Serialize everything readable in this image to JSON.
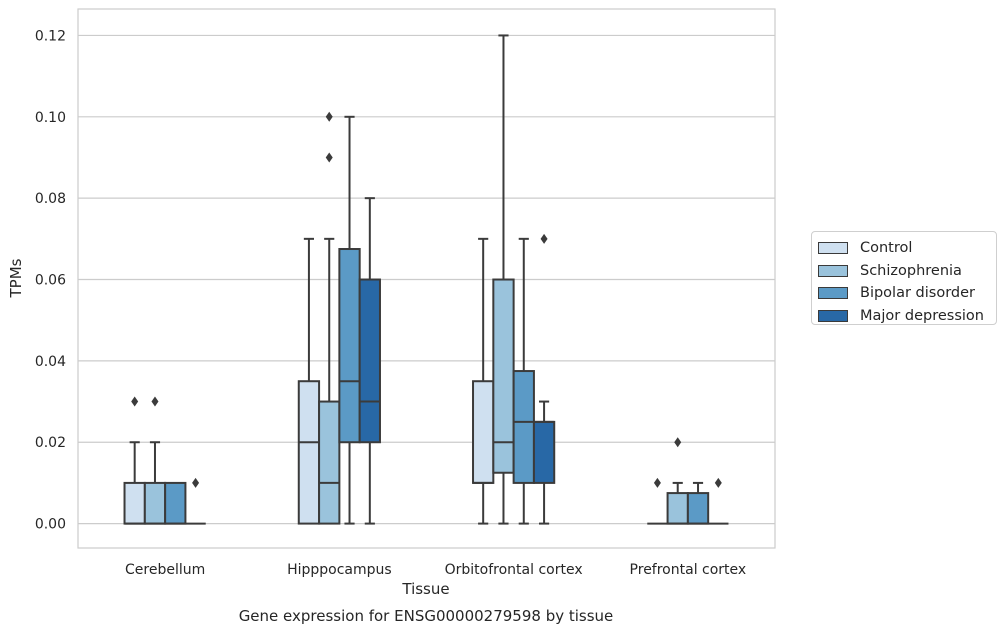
{
  "chart_data": {
    "type": "box",
    "title": "Gene expression for ENSG00000279598 by tissue",
    "xlabel": "Tissue",
    "ylabel": "TPMs",
    "ylim": [
      -0.006,
      0.1265
    ],
    "yticks": [
      "0.00",
      "0.02",
      "0.04",
      "0.06",
      "0.08",
      "0.10",
      "0.12"
    ],
    "grid": "horizontal",
    "legend_position": "right",
    "categories": [
      "Cerebellum",
      "Hipppocampus",
      "Orbitofrontal cortex",
      "Prefrontal cortex"
    ],
    "series": [
      {
        "name": "Control",
        "color": "#cfe0f0",
        "boxes": [
          {
            "min": 0,
            "q1": 0,
            "median": 0,
            "q3": 0.01,
            "max": 0.02,
            "outliers": [
              0.03
            ]
          },
          {
            "min": 0,
            "q1": 0,
            "median": 0.02,
            "q3": 0.035,
            "max": 0.07,
            "outliers": []
          },
          {
            "min": 0,
            "q1": 0.01,
            "median": 0.01,
            "q3": 0.035,
            "max": 0.07,
            "outliers": []
          },
          {
            "min": 0,
            "q1": 0,
            "median": 0,
            "q3": 0,
            "max": 0,
            "outliers": [
              0.01
            ]
          }
        ]
      },
      {
        "name": "Schizophrenia",
        "color": "#9ac3dc",
        "boxes": [
          {
            "min": 0,
            "q1": 0,
            "median": 0,
            "q3": 0.01,
            "max": 0.02,
            "outliers": [
              0.03
            ]
          },
          {
            "min": 0,
            "q1": 0,
            "median": 0.01,
            "q3": 0.03,
            "max": 0.07,
            "outliers": [
              0.09,
              0.1
            ]
          },
          {
            "min": 0,
            "q1": 0.0125,
            "median": 0.02,
            "q3": 0.06,
            "max": 0.12,
            "outliers": []
          },
          {
            "min": 0,
            "q1": 0,
            "median": 0,
            "q3": 0.0075,
            "max": 0.01,
            "outliers": [
              0.02
            ]
          }
        ]
      },
      {
        "name": "Bipolar disorder",
        "color": "#5b9ac6",
        "boxes": [
          {
            "min": 0,
            "q1": 0,
            "median": 0,
            "q3": 0.01,
            "max": 0.01,
            "outliers": []
          },
          {
            "min": 0,
            "q1": 0.02,
            "median": 0.035,
            "q3": 0.0675,
            "max": 0.1,
            "outliers": []
          },
          {
            "min": 0,
            "q1": 0.01,
            "median": 0.025,
            "q3": 0.0375,
            "max": 0.07,
            "outliers": []
          },
          {
            "min": 0,
            "q1": 0,
            "median": 0,
            "q3": 0.0075,
            "max": 0.01,
            "outliers": []
          }
        ]
      },
      {
        "name": "Major depression",
        "color": "#2868a6",
        "boxes": [
          {
            "min": 0,
            "q1": 0,
            "median": 0,
            "q3": 0,
            "max": 0,
            "outliers": [
              0.01
            ]
          },
          {
            "min": 0,
            "q1": 0.02,
            "median": 0.03,
            "q3": 0.06,
            "max": 0.08,
            "outliers": []
          },
          {
            "min": 0,
            "q1": 0.01,
            "median": 0.025,
            "q3": 0.025,
            "max": 0.03,
            "outliers": [
              0.07
            ]
          },
          {
            "min": 0,
            "q1": 0,
            "median": 0,
            "q3": 0,
            "max": 0,
            "outliers": [
              0.01
            ]
          }
        ]
      }
    ]
  }
}
